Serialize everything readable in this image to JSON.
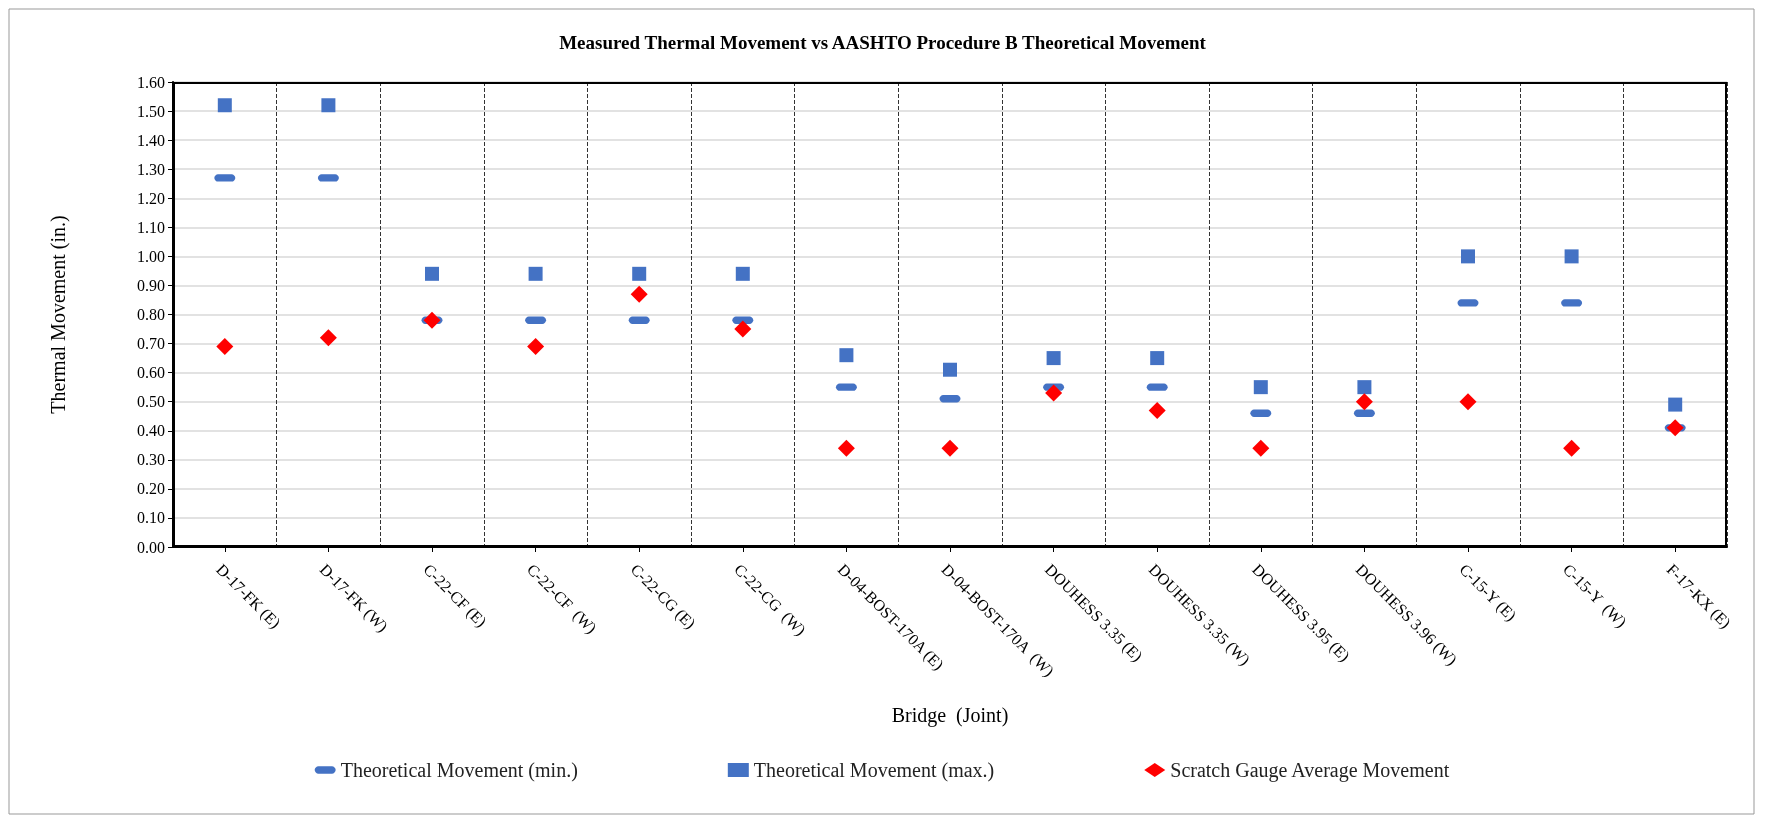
{
  "chart_data": {
    "type": "scatter",
    "title": "Measured Thermal Movement vs AASHTO Procedure B Theoretical Movement",
    "xlabel": "Bridge  (Joint)",
    "ylabel": "Thermal Movement (in.)",
    "categories": [
      "D-17-FK (E)",
      "D-17-FK (W)",
      "C-22-CF (E)",
      "C-22-CF  (W)",
      "C-22-CG (E)",
      "C-22-CG  (W)",
      "D-04-BOST-170A (E)",
      "D-04-BOST-170A  (W)",
      "DOUHESS 3.35 (E)",
      "DOUHESS 3.35 (W)",
      "DOUHESS 3.95 (E)",
      "DOUHESS 3.96 (W)",
      "C-15-Y (E)",
      "C-15-Y  (W)",
      "F-17-KX (E)"
    ],
    "series": [
      {
        "name": "Theoretical Movement (min.)",
        "color": "#4472c4",
        "values": [
          1.27,
          1.27,
          0.78,
          0.78,
          0.78,
          0.78,
          0.55,
          0.51,
          0.55,
          0.55,
          0.46,
          0.46,
          0.84,
          0.84,
          0.41
        ]
      },
      {
        "name": "Theoretical Movement (max.)",
        "color": "#4472c4",
        "marker": "square",
        "values": [
          1.52,
          1.52,
          0.94,
          0.94,
          0.94,
          0.94,
          0.66,
          0.61,
          0.65,
          0.65,
          0.55,
          0.55,
          1.0,
          1.0,
          0.49
        ]
      },
      {
        "name": "Scratch Gauge Average Movement",
        "color": "#ff0000",
        "marker": "diamond",
        "values": [
          0.69,
          0.72,
          0.78,
          0.69,
          0.87,
          0.75,
          0.34,
          0.34,
          0.53,
          0.47,
          0.34,
          0.5,
          0.5,
          0.34,
          0.41
        ]
      }
    ],
    "ylim": [
      0,
      1.6
    ],
    "yticks": [
      {
        "value": 0,
        "label": "0.00"
      },
      {
        "value": 0.1,
        "label": "0.10"
      },
      {
        "value": 0.2,
        "label": "0.20"
      },
      {
        "value": 0.3,
        "label": "0.30"
      },
      {
        "value": 0.4,
        "label": "0.40"
      },
      {
        "value": 0.5,
        "label": "0.50"
      },
      {
        "value": 0.6,
        "label": "0.60"
      },
      {
        "value": 0.7,
        "label": "0.70"
      },
      {
        "value": 0.8,
        "label": "0.80"
      },
      {
        "value": 0.9,
        "label": "0.90"
      },
      {
        "value": 1.0,
        "label": "1.00"
      },
      {
        "value": 1.1,
        "label": "1.10"
      },
      {
        "value": 1.2,
        "label": "1.20"
      },
      {
        "value": 1.3,
        "label": "1.30"
      },
      {
        "value": 1.4,
        "label": "1.40"
      },
      {
        "value": 1.5,
        "label": "1.50"
      },
      {
        "value": 1.6,
        "label": "1.60"
      }
    ],
    "grid": true,
    "legend": "bottom"
  }
}
